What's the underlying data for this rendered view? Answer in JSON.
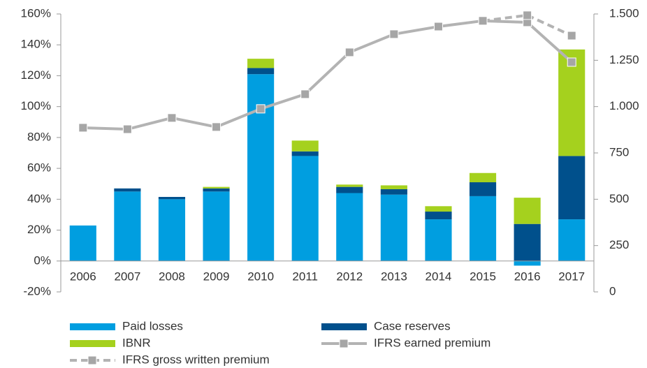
{
  "chart_data": {
    "type": "bar",
    "categories": [
      "2006",
      "2007",
      "2008",
      "2009",
      "2010",
      "2011",
      "2012",
      "2013",
      "2014",
      "2015",
      "2016",
      "2017"
    ],
    "series": [
      {
        "name": "Paid losses",
        "color": "#009ee0",
        "values": [
          23,
          45,
          40,
          45,
          121,
          68,
          44,
          43,
          27,
          42,
          -3,
          27
        ]
      },
      {
        "name": "Case reserves",
        "color": "#00508c",
        "values": [
          0,
          2,
          1.5,
          2,
          4,
          3,
          4,
          3.5,
          5,
          9,
          24,
          41
        ]
      },
      {
        "name": "IBNR",
        "color": "#a5d11e",
        "values": [
          0,
          0,
          0,
          1,
          6,
          7,
          1.5,
          2.5,
          3.5,
          6,
          17,
          69
        ]
      },
      {
        "name": "IFRS earned premium",
        "color": "#b3b3b3",
        "type": "line",
        "axis": "y2",
        "values": [
          886,
          878,
          939,
          890,
          988,
          1067,
          1293,
          1391,
          1432,
          1463,
          1455,
          1240
        ]
      },
      {
        "name": "IFRS gross written premium",
        "color": "#b3b3b3",
        "type": "line",
        "dashed": true,
        "axis": "y2",
        "values": [
          null,
          null,
          null,
          null,
          null,
          null,
          null,
          null,
          null,
          1463,
          1493,
          1383
        ]
      }
    ],
    "ylim": [
      -20,
      160
    ],
    "yticks": [
      {
        "value": -20,
        "label": "-20%"
      },
      {
        "value": 0,
        "label": "0%"
      },
      {
        "value": 20,
        "label": "20%"
      },
      {
        "value": 40,
        "label": "40%"
      },
      {
        "value": 60,
        "label": "60%"
      },
      {
        "value": 80,
        "label": "80%"
      },
      {
        "value": 100,
        "label": "100%"
      },
      {
        "value": 120,
        "label": "120%"
      },
      {
        "value": 140,
        "label": "140%"
      },
      {
        "value": 160,
        "label": "160%"
      }
    ],
    "y2lim": [
      0,
      1500
    ],
    "y2ticks": [
      0,
      250,
      500,
      {
        "value": 750,
        "label": "750"
      },
      {
        "value": 1000,
        "label": "1.000"
      },
      {
        "value": 1250,
        "label": "1.250"
      },
      {
        "value": 1500,
        "label": "1.500"
      }
    ],
    "grid": false
  }
}
